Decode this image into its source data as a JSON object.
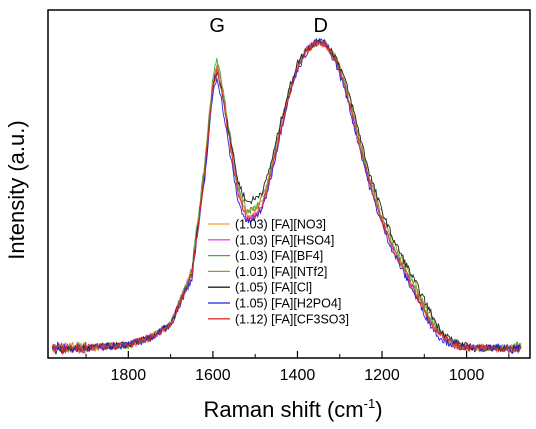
{
  "chart_data": {
    "type": "line",
    "xlabel": "Raman shift (cm",
    "xlabel_sup": "-1",
    "xlabel_close": ")",
    "ylabel": "Intensity (a.u.)",
    "xlim": [
      1990,
      850
    ],
    "ylim": [
      0,
      1.05
    ],
    "x_reversed": true,
    "y_ticks_shown": false,
    "x_ticks": [
      1800,
      1600,
      1400,
      1200,
      1000
    ],
    "x_tick_labels": [
      "1800",
      "1600",
      "1400",
      "1200",
      "1000"
    ],
    "grid": false,
    "legend_position": "center-bottom",
    "annotations": [
      {
        "text": "G",
        "x": 1590
      },
      {
        "text": "D",
        "x": 1345
      }
    ],
    "series": [
      {
        "name": "(1.03) [FA][NO3]",
        "color": "#f5a030",
        "x": [
          1980,
          1900,
          1800,
          1750,
          1700,
          1650,
          1620,
          1600,
          1590,
          1580,
          1560,
          1540,
          1520,
          1500,
          1480,
          1460,
          1440,
          1420,
          1400,
          1380,
          1360,
          1345,
          1330,
          1310,
          1290,
          1270,
          1250,
          1230,
          1210,
          1190,
          1170,
          1150,
          1130,
          1110,
          1090,
          1070,
          1050,
          1030,
          1000,
          960,
          920,
          870
        ],
        "y": [
          0.03,
          0.03,
          0.04,
          0.06,
          0.1,
          0.25,
          0.55,
          0.82,
          0.88,
          0.82,
          0.66,
          0.5,
          0.43,
          0.44,
          0.48,
          0.58,
          0.7,
          0.8,
          0.88,
          0.93,
          0.95,
          0.955,
          0.94,
          0.9,
          0.83,
          0.73,
          0.63,
          0.53,
          0.45,
          0.38,
          0.32,
          0.27,
          0.22,
          0.17,
          0.12,
          0.08,
          0.06,
          0.04,
          0.03,
          0.03,
          0.03,
          0.03
        ]
      },
      {
        "name": "(1.03) [FA][HSO4]",
        "color": "#ee44ee",
        "x": [
          1980,
          1900,
          1800,
          1750,
          1700,
          1650,
          1620,
          1600,
          1590,
          1580,
          1560,
          1540,
          1520,
          1500,
          1480,
          1460,
          1440,
          1420,
          1400,
          1380,
          1360,
          1345,
          1330,
          1310,
          1290,
          1270,
          1250,
          1230,
          1210,
          1190,
          1170,
          1150,
          1130,
          1110,
          1090,
          1070,
          1050,
          1030,
          1000,
          960,
          920,
          870
        ],
        "y": [
          0.03,
          0.03,
          0.04,
          0.06,
          0.1,
          0.26,
          0.56,
          0.83,
          0.89,
          0.83,
          0.67,
          0.5,
          0.42,
          0.43,
          0.47,
          0.57,
          0.69,
          0.79,
          0.88,
          0.93,
          0.95,
          0.955,
          0.94,
          0.9,
          0.83,
          0.73,
          0.63,
          0.53,
          0.45,
          0.38,
          0.32,
          0.27,
          0.22,
          0.17,
          0.12,
          0.08,
          0.06,
          0.04,
          0.03,
          0.03,
          0.03,
          0.03
        ]
      },
      {
        "name": "(1.03) [FA][BF4]",
        "color": "#4aa84a",
        "x": [
          1980,
          1900,
          1800,
          1750,
          1700,
          1650,
          1620,
          1600,
          1590,
          1580,
          1560,
          1540,
          1520,
          1500,
          1480,
          1460,
          1440,
          1420,
          1400,
          1380,
          1360,
          1345,
          1330,
          1310,
          1290,
          1270,
          1250,
          1230,
          1210,
          1190,
          1170,
          1150,
          1130,
          1110,
          1090,
          1070,
          1050,
          1030,
          1000,
          960,
          920,
          870
        ],
        "y": [
          0.03,
          0.03,
          0.04,
          0.06,
          0.1,
          0.27,
          0.58,
          0.85,
          0.9,
          0.84,
          0.68,
          0.52,
          0.44,
          0.45,
          0.49,
          0.59,
          0.7,
          0.8,
          0.88,
          0.93,
          0.95,
          0.955,
          0.94,
          0.9,
          0.84,
          0.74,
          0.64,
          0.54,
          0.46,
          0.39,
          0.33,
          0.28,
          0.23,
          0.18,
          0.13,
          0.09,
          0.06,
          0.04,
          0.03,
          0.03,
          0.03,
          0.03
        ]
      },
      {
        "name": "(1.01) [FA][NTf2]",
        "color": "#9a9a2a",
        "x": [
          1980,
          1900,
          1800,
          1750,
          1700,
          1650,
          1620,
          1600,
          1590,
          1580,
          1560,
          1540,
          1520,
          1500,
          1480,
          1460,
          1440,
          1420,
          1400,
          1380,
          1360,
          1345,
          1330,
          1310,
          1290,
          1270,
          1250,
          1230,
          1210,
          1190,
          1170,
          1150,
          1130,
          1110,
          1090,
          1070,
          1050,
          1030,
          1000,
          960,
          920,
          870
        ],
        "y": [
          0.03,
          0.03,
          0.04,
          0.06,
          0.1,
          0.26,
          0.57,
          0.84,
          0.89,
          0.83,
          0.67,
          0.51,
          0.44,
          0.45,
          0.49,
          0.58,
          0.7,
          0.8,
          0.88,
          0.93,
          0.95,
          0.955,
          0.94,
          0.91,
          0.84,
          0.75,
          0.65,
          0.55,
          0.47,
          0.4,
          0.34,
          0.29,
          0.24,
          0.19,
          0.14,
          0.09,
          0.06,
          0.04,
          0.03,
          0.03,
          0.03,
          0.03
        ]
      },
      {
        "name": "(1.05) [FA][Cl]",
        "color": "#222222",
        "x": [
          1980,
          1900,
          1800,
          1750,
          1700,
          1650,
          1620,
          1600,
          1590,
          1580,
          1560,
          1540,
          1520,
          1500,
          1480,
          1460,
          1440,
          1420,
          1400,
          1380,
          1360,
          1345,
          1330,
          1310,
          1290,
          1270,
          1250,
          1230,
          1210,
          1190,
          1170,
          1150,
          1130,
          1110,
          1090,
          1070,
          1050,
          1030,
          1000,
          960,
          920,
          870
        ],
        "y": [
          0.03,
          0.03,
          0.04,
          0.06,
          0.1,
          0.25,
          0.55,
          0.82,
          0.87,
          0.81,
          0.67,
          0.53,
          0.47,
          0.48,
          0.51,
          0.6,
          0.71,
          0.81,
          0.89,
          0.93,
          0.95,
          0.955,
          0.945,
          0.91,
          0.85,
          0.76,
          0.66,
          0.56,
          0.48,
          0.41,
          0.35,
          0.3,
          0.25,
          0.2,
          0.15,
          0.1,
          0.07,
          0.05,
          0.035,
          0.03,
          0.03,
          0.03
        ]
      },
      {
        "name": "(1.05) [FA][H2PO4]",
        "color": "#2222dd",
        "x": [
          1980,
          1900,
          1800,
          1750,
          1700,
          1650,
          1620,
          1600,
          1590,
          1580,
          1560,
          1540,
          1520,
          1500,
          1480,
          1460,
          1440,
          1420,
          1400,
          1380,
          1360,
          1345,
          1330,
          1310,
          1290,
          1270,
          1250,
          1230,
          1210,
          1190,
          1170,
          1150,
          1130,
          1110,
          1090,
          1070,
          1050,
          1030,
          1000,
          960,
          920,
          870
        ],
        "y": [
          0.03,
          0.03,
          0.04,
          0.06,
          0.1,
          0.24,
          0.53,
          0.8,
          0.85,
          0.78,
          0.62,
          0.47,
          0.41,
          0.42,
          0.46,
          0.56,
          0.68,
          0.79,
          0.87,
          0.92,
          0.95,
          0.955,
          0.94,
          0.89,
          0.82,
          0.72,
          0.62,
          0.52,
          0.44,
          0.37,
          0.31,
          0.26,
          0.21,
          0.16,
          0.11,
          0.07,
          0.05,
          0.04,
          0.03,
          0.03,
          0.03,
          0.03
        ]
      },
      {
        "name": "(1.12) [FA][CF3SO3]",
        "color": "#e03030",
        "x": [
          1980,
          1900,
          1800,
          1750,
          1700,
          1650,
          1620,
          1600,
          1590,
          1580,
          1560,
          1540,
          1520,
          1500,
          1480,
          1460,
          1440,
          1420,
          1400,
          1380,
          1360,
          1345,
          1330,
          1310,
          1290,
          1270,
          1250,
          1230,
          1210,
          1190,
          1170,
          1150,
          1130,
          1110,
          1090,
          1070,
          1050,
          1030,
          1000,
          960,
          920,
          870
        ],
        "y": [
          0.03,
          0.03,
          0.04,
          0.06,
          0.1,
          0.25,
          0.55,
          0.82,
          0.87,
          0.81,
          0.65,
          0.49,
          0.42,
          0.43,
          0.47,
          0.57,
          0.69,
          0.79,
          0.87,
          0.92,
          0.95,
          0.955,
          0.94,
          0.9,
          0.83,
          0.73,
          0.63,
          0.53,
          0.45,
          0.38,
          0.32,
          0.27,
          0.22,
          0.17,
          0.12,
          0.08,
          0.06,
          0.04,
          0.03,
          0.03,
          0.03,
          0.03
        ]
      }
    ]
  }
}
